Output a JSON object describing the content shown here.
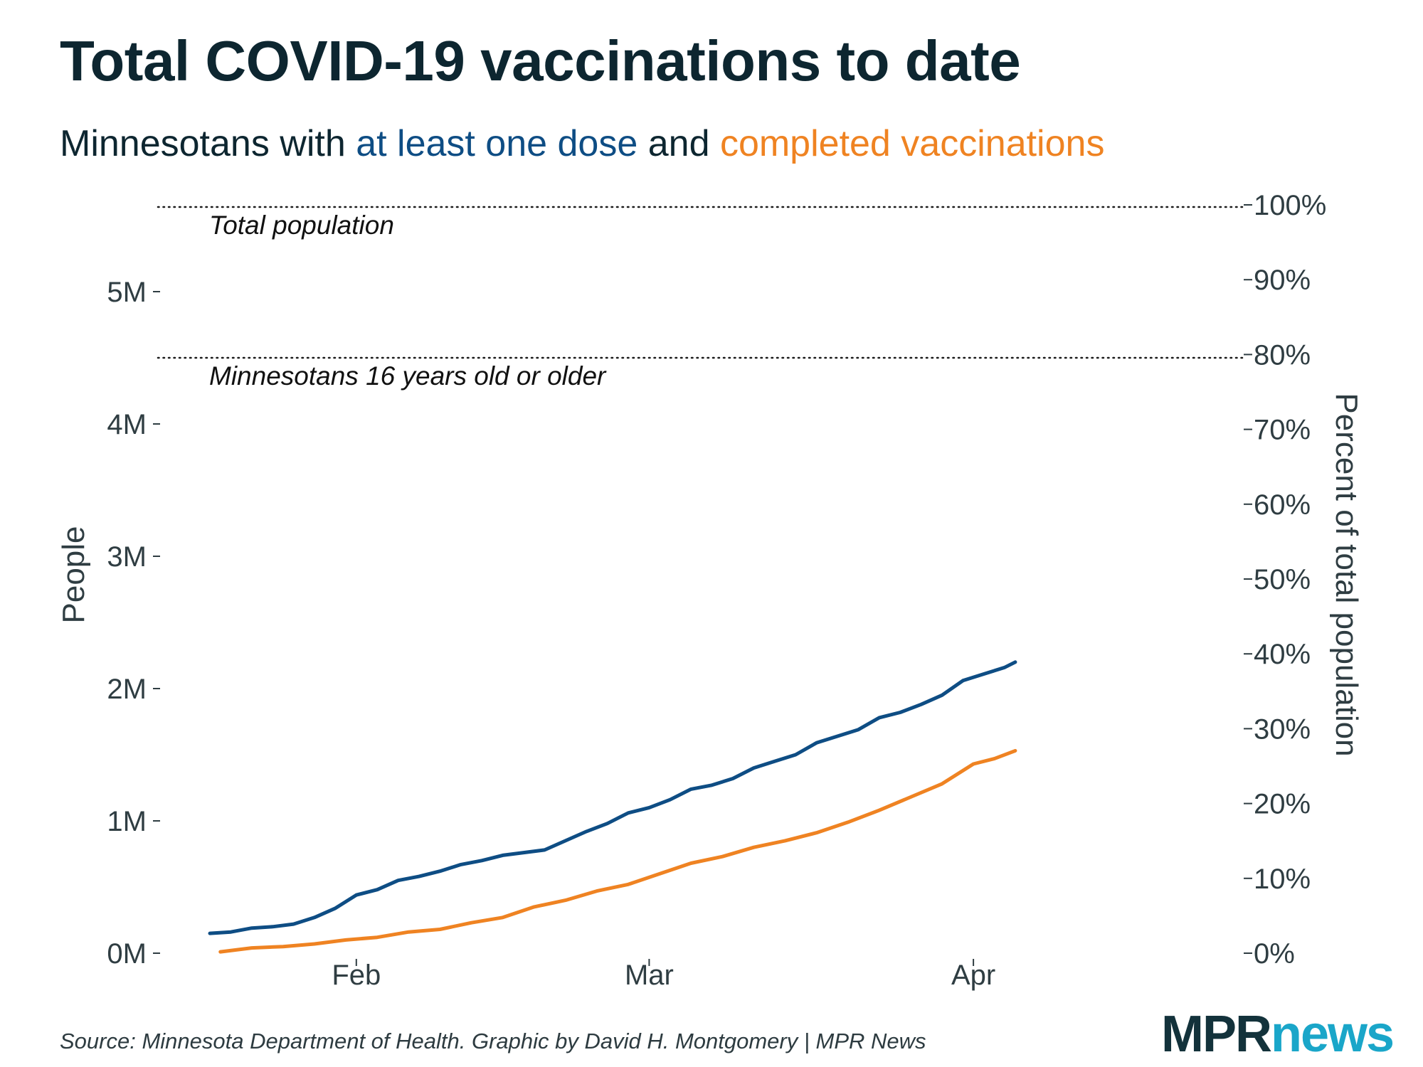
{
  "header": {
    "title": "Total COVID-19 vaccinations to date",
    "subtitle_prefix": "Minnesotans with ",
    "subtitle_series1": "at least one dose",
    "subtitle_middle": " and ",
    "subtitle_series2": "completed vaccinations"
  },
  "footer": {
    "source": "Source: Minnesota Department of Health. Graphic by David H. Montgomery | MPR News",
    "logo_mpr": "MPR",
    "logo_news": "news"
  },
  "colors": {
    "text": "#0d2630",
    "axis_text": "#2f3d42",
    "series_dose": "#0e4d84",
    "series_complete": "#ef8322",
    "logo_mpr": "#13323b",
    "logo_news": "#1aa6c9"
  },
  "chart_data": {
    "type": "line",
    "title": "Total COVID-19 vaccinations to date",
    "ylabel": "People",
    "y2label": "Percent of total population",
    "x_start": "Jan 18",
    "x_end": "Apr 14",
    "x_ticks": [
      {
        "label": "Feb",
        "day": 14
      },
      {
        "label": "Mar",
        "day": 42
      },
      {
        "label": "Apr",
        "day": 73
      }
    ],
    "ylim": [
      0,
      5500000
    ],
    "yticks": [
      {
        "label": "0M",
        "value": 0
      },
      {
        "label": "1M",
        "value": 1000000
      },
      {
        "label": "2M",
        "value": 2000000
      },
      {
        "label": "3M",
        "value": 3000000
      },
      {
        "label": "4M",
        "value": 4000000
      },
      {
        "label": "5M",
        "value": 5000000
      }
    ],
    "y2lim": [
      0,
      100
    ],
    "y2ticks": [
      "0%",
      "10%",
      "20%",
      "30%",
      "40%",
      "50%",
      "60%",
      "70%",
      "80%",
      "90%",
      "100%"
    ],
    "reference_lines": [
      {
        "label": "Total population",
        "value": 5640000
      },
      {
        "label": "Minnesotans 16 years old or older",
        "value": 4500000
      }
    ],
    "series": [
      {
        "name": "at least one dose",
        "color": "#0e4d84",
        "points": [
          [
            0,
            150000
          ],
          [
            2,
            160000
          ],
          [
            4,
            190000
          ],
          [
            6,
            200000
          ],
          [
            8,
            220000
          ],
          [
            10,
            270000
          ],
          [
            12,
            340000
          ],
          [
            14,
            440000
          ],
          [
            16,
            480000
          ],
          [
            18,
            550000
          ],
          [
            20,
            580000
          ],
          [
            22,
            620000
          ],
          [
            24,
            670000
          ],
          [
            26,
            700000
          ],
          [
            28,
            740000
          ],
          [
            30,
            760000
          ],
          [
            32,
            780000
          ],
          [
            34,
            850000
          ],
          [
            36,
            920000
          ],
          [
            38,
            980000
          ],
          [
            40,
            1060000
          ],
          [
            42,
            1100000
          ],
          [
            44,
            1160000
          ],
          [
            46,
            1240000
          ],
          [
            48,
            1270000
          ],
          [
            50,
            1320000
          ],
          [
            52,
            1400000
          ],
          [
            54,
            1450000
          ],
          [
            56,
            1500000
          ],
          [
            58,
            1590000
          ],
          [
            60,
            1640000
          ],
          [
            62,
            1690000
          ],
          [
            64,
            1780000
          ],
          [
            66,
            1820000
          ],
          [
            68,
            1880000
          ],
          [
            70,
            1950000
          ],
          [
            72,
            2060000
          ],
          [
            74,
            2110000
          ],
          [
            76,
            2160000
          ],
          [
            77,
            2200000
          ]
        ]
      },
      {
        "name": "completed vaccinations",
        "color": "#ef8322",
        "points": [
          [
            1,
            10000
          ],
          [
            4,
            40000
          ],
          [
            7,
            50000
          ],
          [
            10,
            70000
          ],
          [
            13,
            100000
          ],
          [
            16,
            120000
          ],
          [
            19,
            160000
          ],
          [
            22,
            180000
          ],
          [
            25,
            230000
          ],
          [
            28,
            270000
          ],
          [
            31,
            350000
          ],
          [
            34,
            400000
          ],
          [
            37,
            470000
          ],
          [
            40,
            520000
          ],
          [
            43,
            600000
          ],
          [
            46,
            680000
          ],
          [
            49,
            730000
          ],
          [
            52,
            800000
          ],
          [
            55,
            850000
          ],
          [
            58,
            910000
          ],
          [
            61,
            990000
          ],
          [
            64,
            1080000
          ],
          [
            67,
            1180000
          ],
          [
            70,
            1280000
          ],
          [
            73,
            1430000
          ],
          [
            75,
            1470000
          ],
          [
            77,
            1530000
          ]
        ]
      }
    ]
  }
}
